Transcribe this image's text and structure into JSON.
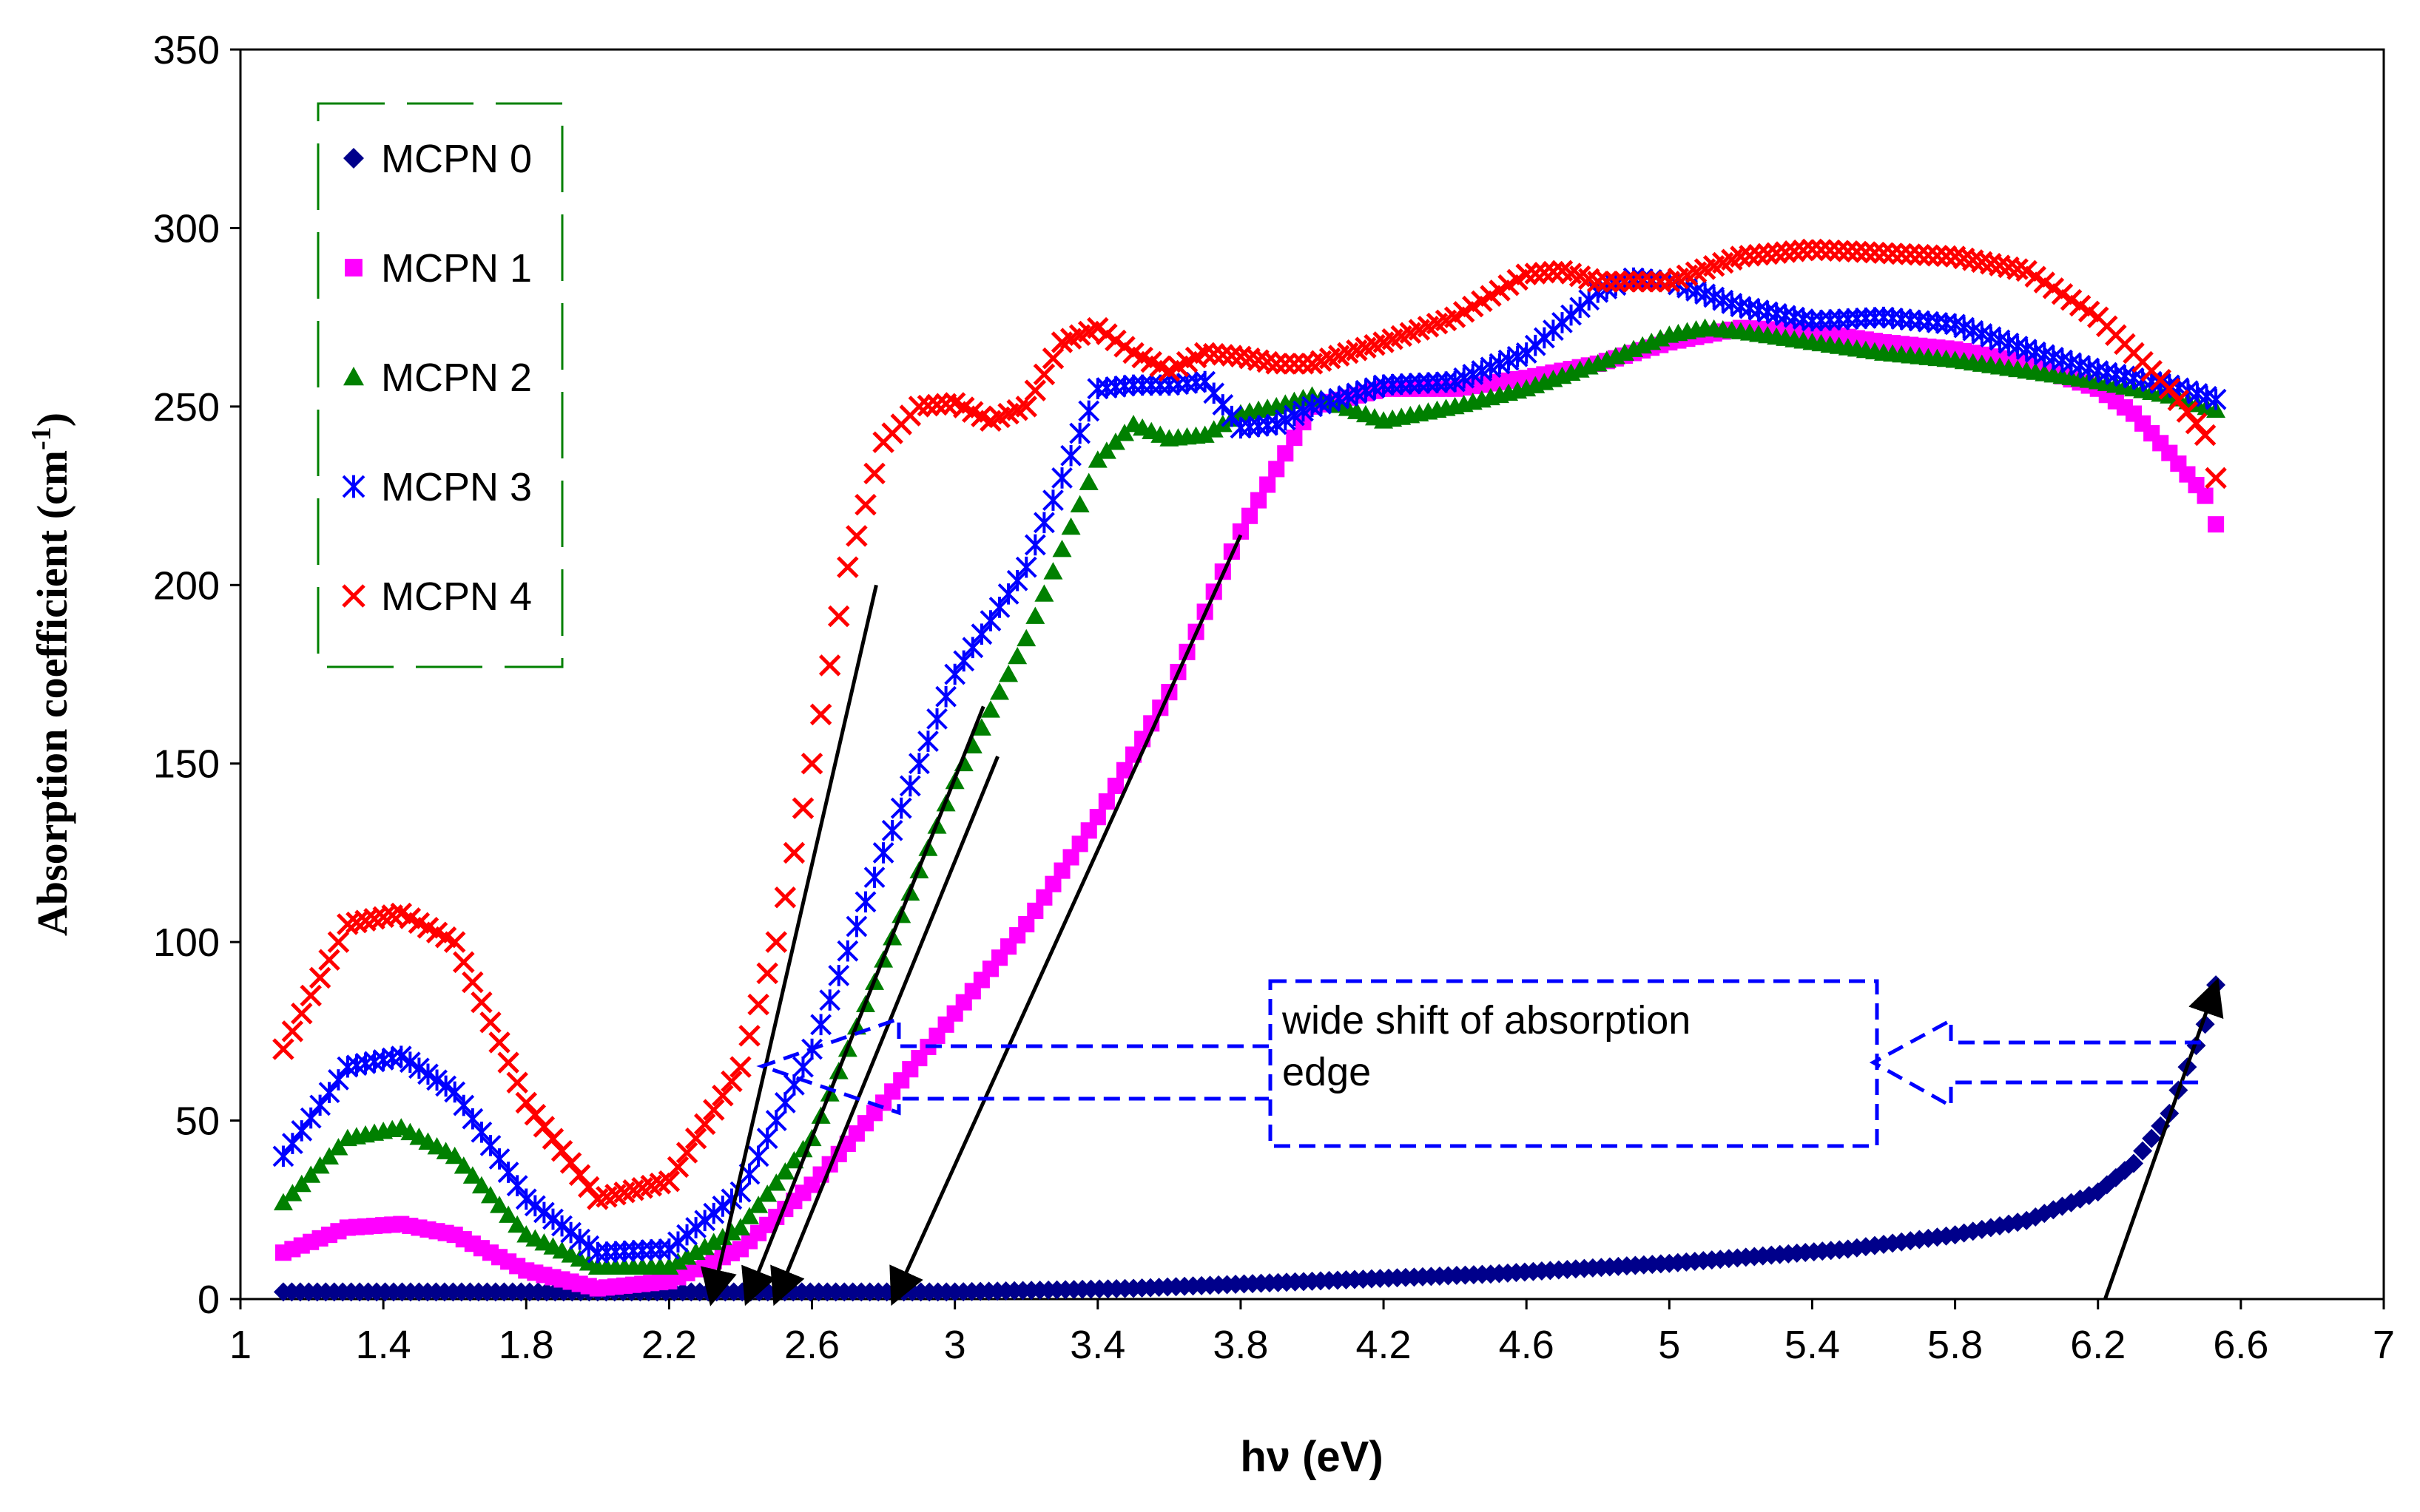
{
  "chart_data": {
    "type": "scatter",
    "title": "",
    "xlabel": "hν (eV)",
    "ylabel_main": "Absorption coefficient (cm",
    "ylabel_sup": "-1",
    "ylabel_end": ")",
    "xlim": [
      1,
      7
    ],
    "ylim": [
      0,
      350
    ],
    "xticks": [
      1,
      1.4,
      1.8,
      2.2,
      2.6,
      3,
      3.4,
      3.8,
      4.2,
      4.6,
      5,
      5.4,
      5.8,
      6.2,
      6.6,
      7
    ],
    "xtick_labels": [
      "1",
      "1.4",
      "1.8",
      "2.2",
      "2.6",
      "3",
      "3.4",
      "3.8",
      "4.2",
      "4.6",
      "5",
      "5.4",
      "5.8",
      "6.2",
      "6.6",
      "7"
    ],
    "yticks": [
      0,
      50,
      100,
      150,
      200,
      250,
      300,
      350
    ],
    "ytick_labels": [
      "0",
      "50",
      "100",
      "150",
      "200",
      "250",
      "300",
      "350"
    ],
    "grid": false,
    "legend_position": "top-left",
    "series": [
      {
        "name": "MCPN 0",
        "color": "#00008B",
        "marker": "diamond",
        "x": [
          1.12,
          1.5,
          2.0,
          2.5,
          3.0,
          3.5,
          4.0,
          4.5,
          5.0,
          5.5,
          5.8,
          6.0,
          6.2,
          6.3,
          6.35,
          6.4,
          6.45,
          6.5,
          6.53
        ],
        "y": [
          2,
          2,
          2,
          2,
          2,
          3,
          5,
          7,
          10,
          14,
          18,
          22,
          30,
          38,
          45,
          52,
          65,
          77,
          88
        ]
      },
      {
        "name": "MCPN 1",
        "color": "#FF00FF",
        "marker": "square",
        "x": [
          1.12,
          1.3,
          1.45,
          1.6,
          1.8,
          2.0,
          2.2,
          2.4,
          2.6,
          2.8,
          3.0,
          3.2,
          3.4,
          3.6,
          3.8,
          4.0,
          4.2,
          4.4,
          4.6,
          4.8,
          5.0,
          5.2,
          5.4,
          5.6,
          5.8,
          6.0,
          6.2,
          6.3,
          6.4,
          6.5,
          6.53
        ],
        "y": [
          13,
          20,
          21,
          18,
          8,
          3,
          5,
          14,
          32,
          55,
          80,
          105,
          135,
          170,
          215,
          250,
          255,
          255,
          258,
          262,
          268,
          272,
          271,
          268,
          266,
          262,
          255,
          248,
          237,
          225,
          217
        ]
      },
      {
        "name": "MCPN 2",
        "color": "#008000",
        "marker": "triangle",
        "x": [
          1.12,
          1.3,
          1.45,
          1.6,
          1.8,
          2.0,
          2.2,
          2.4,
          2.6,
          2.8,
          3.0,
          3.2,
          3.4,
          3.5,
          3.6,
          3.7,
          3.8,
          3.9,
          4.0,
          4.2,
          4.4,
          4.6,
          4.8,
          5.0,
          5.1,
          5.2,
          5.4,
          5.6,
          5.8,
          6.0,
          6.2,
          6.4,
          6.53
        ],
        "y": [
          27,
          45,
          48,
          40,
          18,
          9,
          9,
          20,
          45,
          95,
          145,
          185,
          235,
          245,
          241,
          242,
          248,
          250,
          253,
          246,
          250,
          255,
          262,
          270,
          272,
          271,
          268,
          265,
          263,
          260,
          257,
          253,
          249
        ]
      },
      {
        "name": "MCPN 3",
        "color": "#0000FF",
        "marker": "star",
        "x": [
          1.12,
          1.3,
          1.45,
          1.6,
          1.8,
          2.0,
          2.2,
          2.4,
          2.6,
          2.8,
          3.0,
          3.2,
          3.3,
          3.4,
          3.5,
          3.6,
          3.7,
          3.8,
          3.9,
          4.0,
          4.2,
          4.4,
          4.6,
          4.8,
          4.9,
          5.0,
          5.2,
          5.4,
          5.6,
          5.8,
          6.0,
          6.2,
          6.4,
          6.53
        ],
        "y": [
          40,
          65,
          68,
          58,
          28,
          13,
          14,
          30,
          70,
          125,
          175,
          205,
          230,
          255,
          256,
          256,
          257,
          244,
          245,
          250,
          256,
          257,
          265,
          282,
          286,
          285,
          278,
          274,
          275,
          273,
          266,
          260,
          256,
          252
        ]
      },
      {
        "name": "MCPN 4",
        "color": "#FF0000",
        "marker": "x",
        "x": [
          1.12,
          1.3,
          1.45,
          1.6,
          1.8,
          2.0,
          2.2,
          2.4,
          2.5,
          2.6,
          2.7,
          2.8,
          2.9,
          3.0,
          3.1,
          3.2,
          3.3,
          3.4,
          3.5,
          3.6,
          3.7,
          3.8,
          3.9,
          4.0,
          4.2,
          4.4,
          4.6,
          4.7,
          4.8,
          5.0,
          5.2,
          5.4,
          5.6,
          5.8,
          6.0,
          6.2,
          6.3,
          6.4,
          6.5,
          6.53
        ],
        "y": [
          70,
          105,
          108,
          100,
          55,
          28,
          33,
          65,
          100,
          150,
          205,
          240,
          250,
          251,
          246,
          250,
          268,
          272,
          265,
          260,
          265,
          264,
          262,
          262,
          268,
          275,
          287,
          288,
          285,
          285,
          292,
          294,
          293,
          292,
          288,
          275,
          265,
          255,
          242,
          230
        ]
      }
    ],
    "tangent_lines": [
      {
        "x1": 2.32,
        "y1": 0,
        "x2": 2.78,
        "y2": 200
      },
      {
        "x1": 2.42,
        "y1": 0,
        "x2": 3.08,
        "y2": 166
      },
      {
        "x1": 2.5,
        "y1": 0,
        "x2": 3.12,
        "y2": 152
      },
      {
        "x1": 2.83,
        "y1": 0,
        "x2": 3.8,
        "y2": 214
      },
      {
        "x1": 6.53,
        "y1": 88,
        "x2": 6.22,
        "y2": 0
      }
    ],
    "annotation": {
      "text_line1": "wide shift of absorption",
      "text_line2": "edge"
    }
  },
  "legend": {
    "items": [
      "MCPN 0",
      "MCPN 1",
      "MCPN 2",
      "MCPN 3",
      "MCPN 4"
    ]
  }
}
